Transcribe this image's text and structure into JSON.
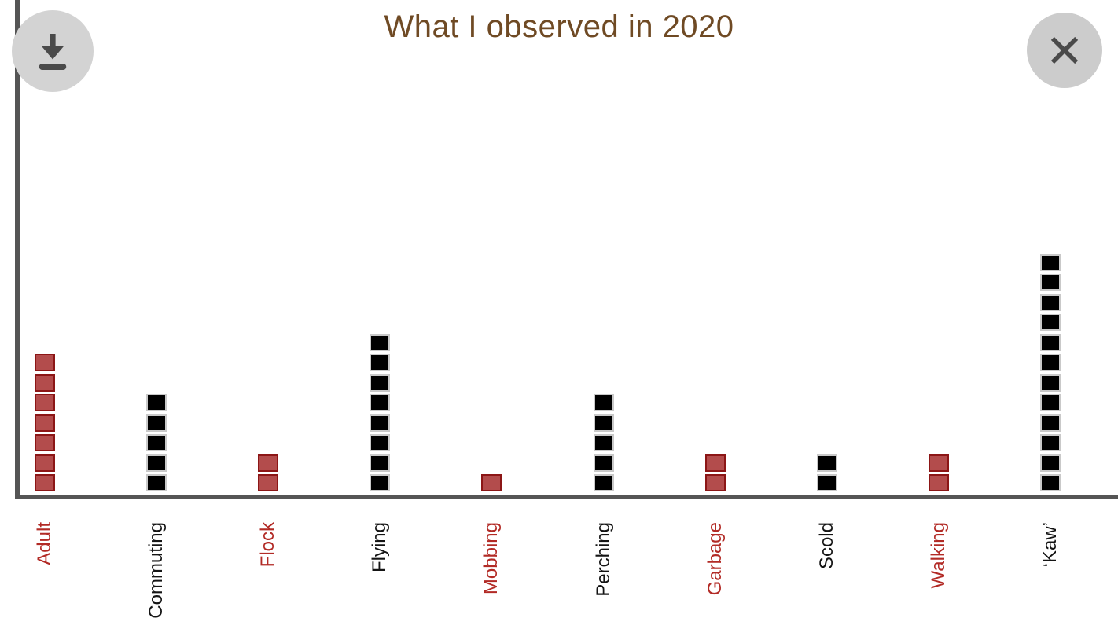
{
  "chart_data": {
    "type": "bar",
    "style": "stacked-unit-squares (each square = 1 observation)",
    "title": "What I observed in 2020",
    "categories": [
      "Adult",
      "Commuting",
      "Flock",
      "Flying",
      "Mobbing",
      "Perching",
      "Garbage",
      "Scold",
      "Walking",
      "‘Kaw’"
    ],
    "values": [
      7,
      5,
      2,
      8,
      1,
      5,
      2,
      2,
      2,
      12
    ],
    "color_classes": [
      "red",
      "black",
      "red",
      "black",
      "red",
      "black",
      "red",
      "black",
      "red",
      "black"
    ],
    "xlabel": "",
    "ylabel": "",
    "ylim": [
      0,
      12
    ],
    "grid": false,
    "legend": false,
    "x_tick_rotation": -90
  },
  "palette": {
    "red_fill": "#b34c4c",
    "red_border": "#8c1616",
    "red_label": "#b22a25",
    "black_fill": "#000000",
    "black_border": "#c9c9c9",
    "black_label": "#141414",
    "axis": "#555555",
    "title": "#6f4a24",
    "button_bg": "#d3d3d3",
    "button_icon": "#4a4a4a",
    "background": "#ffffff"
  },
  "toolbar": {
    "download_button": {
      "icon": "download-icon"
    },
    "close_button": {
      "icon": "close-icon"
    }
  }
}
